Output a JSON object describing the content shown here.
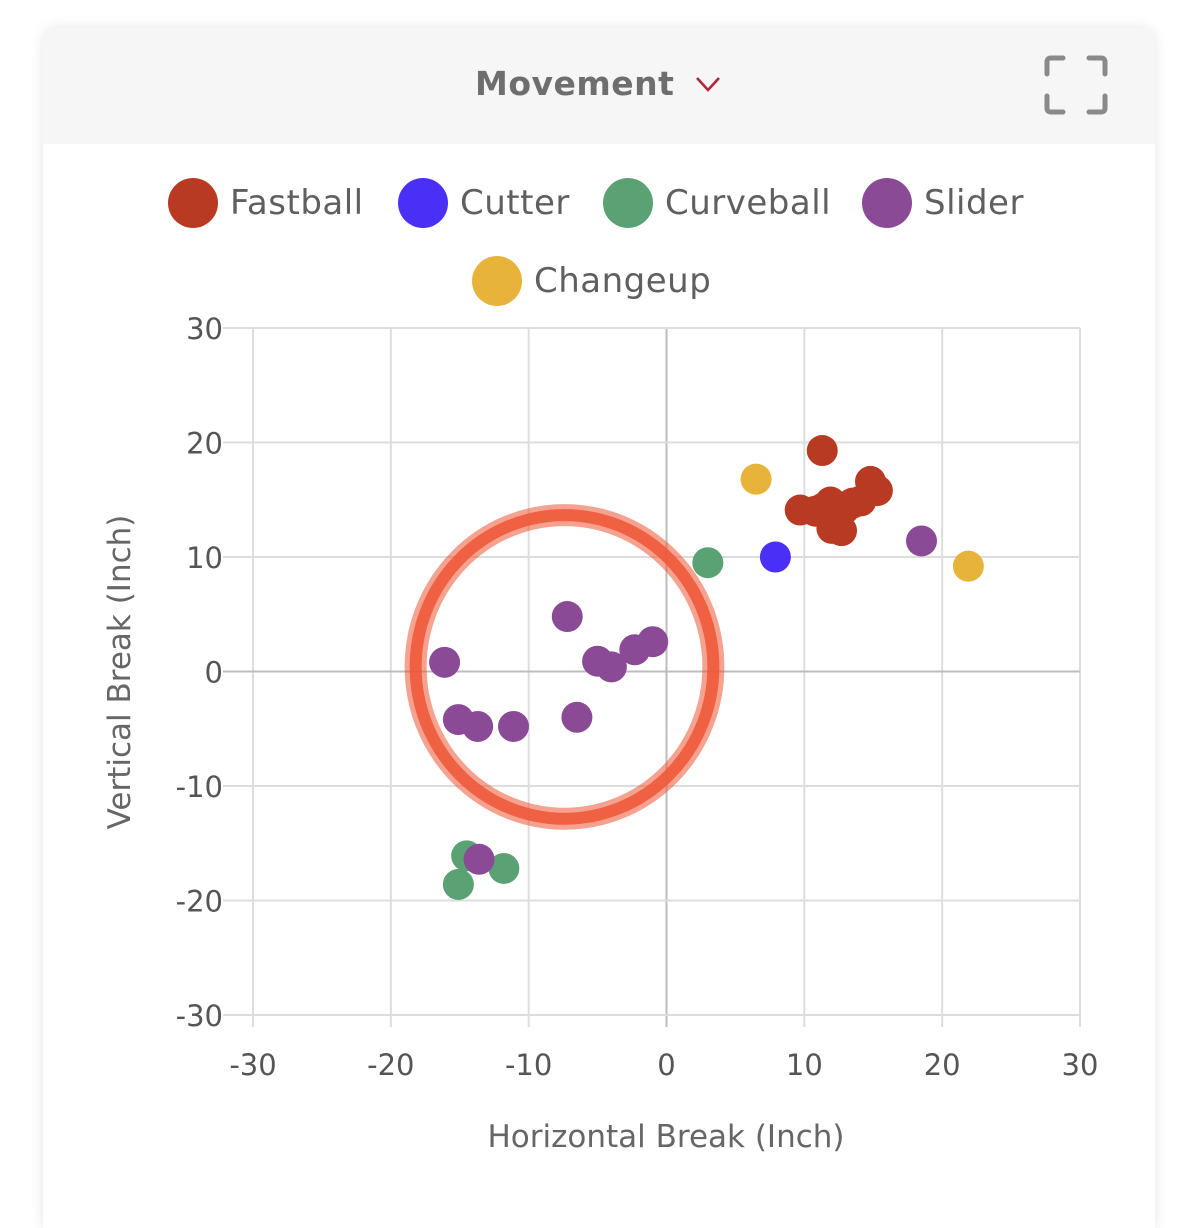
{
  "header": {
    "title": "Movement",
    "dropdown_icon": "chevron-down-icon",
    "expand_icon": "fullscreen-icon"
  },
  "colors": {
    "Fastball": "#b83a23",
    "Cutter": "#4a2ff7",
    "Curveball": "#5aa274",
    "Slider": "#8a4a96",
    "Changeup": "#e8b33a",
    "annotation": "#ef5535"
  },
  "legend": [
    {
      "label": "Fastball",
      "color": "#b83a23"
    },
    {
      "label": "Cutter",
      "color": "#4a2ff7"
    },
    {
      "label": "Curveball",
      "color": "#5aa274"
    },
    {
      "label": "Slider",
      "color": "#8a4a96"
    },
    {
      "label": "Changeup",
      "color": "#e8b33a"
    }
  ],
  "chart_data": {
    "type": "scatter",
    "xlabel": "Horizontal Break (Inch)",
    "ylabel": "Vertical Break (Inch)",
    "xlim": [
      -30,
      30
    ],
    "ylim": [
      -30,
      30
    ],
    "xticks": [
      -30,
      -20,
      -10,
      0,
      10,
      20,
      30
    ],
    "yticks": [
      30,
      20,
      10,
      0,
      -10,
      -20,
      -30
    ],
    "grid": true,
    "legend_position": "top",
    "series": [
      {
        "name": "Fastball",
        "points": [
          [
            11.3,
            19.3
          ],
          [
            9.7,
            14.1
          ],
          [
            10.8,
            14.0
          ],
          [
            11.4,
            14.3
          ],
          [
            11.9,
            14.8
          ],
          [
            12.4,
            13.8
          ],
          [
            12.9,
            14.2
          ],
          [
            13.5,
            14.7
          ],
          [
            14.1,
            14.9
          ],
          [
            14.8,
            16.6
          ],
          [
            15.3,
            15.8
          ],
          [
            12.0,
            12.5
          ],
          [
            12.7,
            12.3
          ],
          [
            12.3,
            13.2
          ]
        ]
      },
      {
        "name": "Cutter",
        "points": [
          [
            7.9,
            10.0
          ]
        ]
      },
      {
        "name": "Curveball",
        "points": [
          [
            3.0,
            9.5
          ],
          [
            -14.5,
            -16.1
          ],
          [
            -11.8,
            -17.2
          ],
          [
            -15.1,
            -18.6
          ]
        ]
      },
      {
        "name": "Slider",
        "points": [
          [
            -7.2,
            4.8
          ],
          [
            -1.0,
            2.6
          ],
          [
            -2.3,
            1.9
          ],
          [
            -5.0,
            0.9
          ],
          [
            -4.0,
            0.4
          ],
          [
            -16.1,
            0.8
          ],
          [
            -15.1,
            -4.2
          ],
          [
            -13.7,
            -4.8
          ],
          [
            -11.1,
            -4.8
          ],
          [
            -6.5,
            -4.0
          ],
          [
            18.5,
            11.4
          ],
          [
            -13.6,
            -16.4
          ]
        ]
      },
      {
        "name": "Changeup",
        "points": [
          [
            6.5,
            16.8
          ],
          [
            21.9,
            9.2
          ]
        ]
      }
    ],
    "annotation": {
      "type": "circle",
      "center": [
        -7.4,
        0.4
      ],
      "radius_x_units": 10.8
    }
  }
}
